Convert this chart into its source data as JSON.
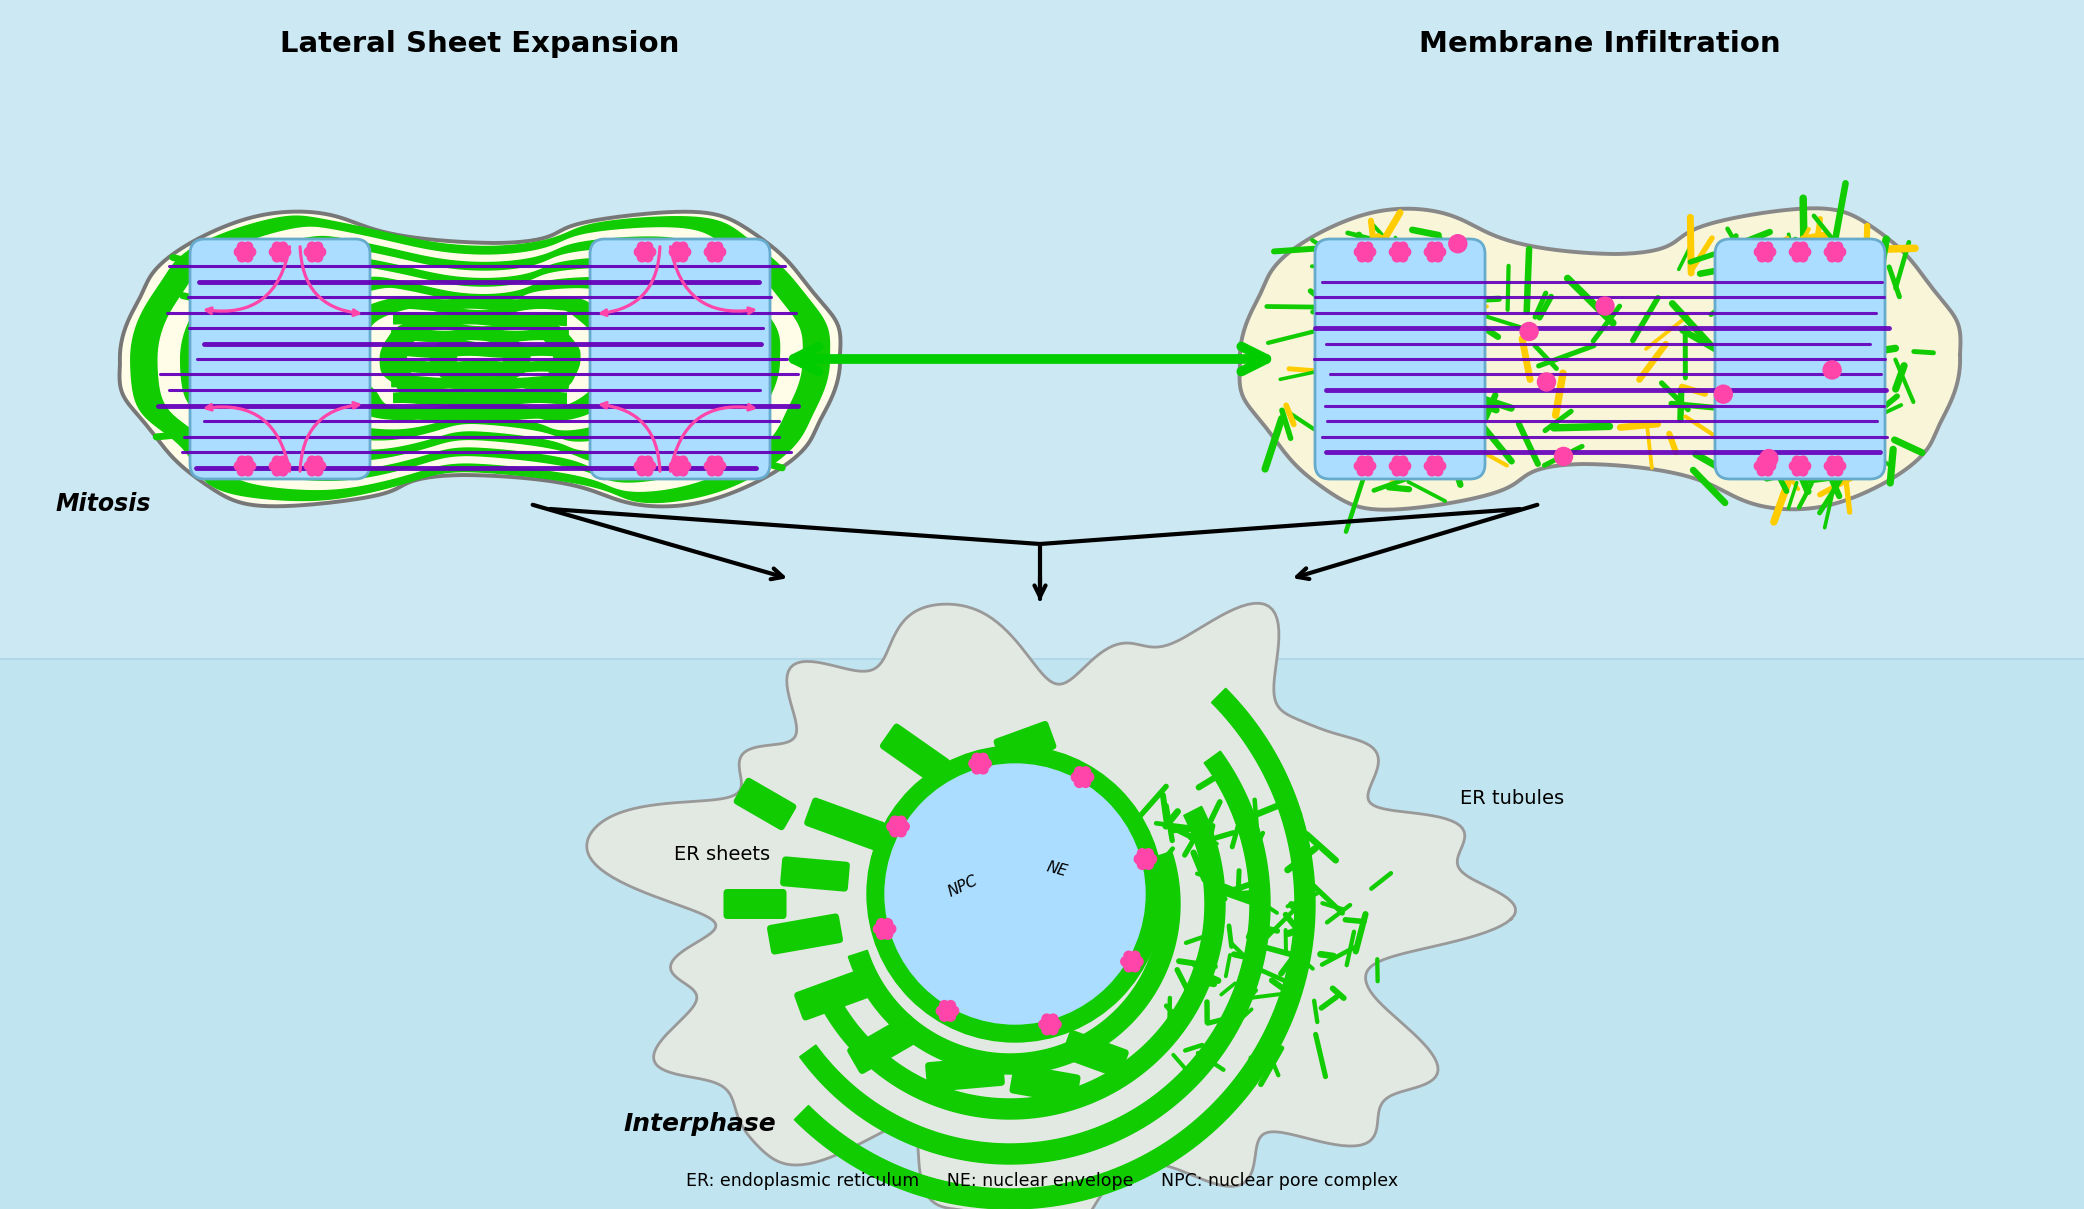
{
  "bg_color": "#cceeff",
  "bg_top_color": "#d5f0f8",
  "bg_bottom_color": "#c0e8f5",
  "title_left": "Lateral Sheet Expansion",
  "title_right": "Membrane Infiltration",
  "label_mitosis": "Mitosis",
  "label_interphase": "Interphase",
  "label_er_sheets": "ER sheets",
  "label_er_tubules": "ER tubules",
  "label_npc": "NPC",
  "label_ne": "NE",
  "legend_text": "ER: endoplasmic reticulum     NE: nuclear envelope     NPC: nuclear pore complex",
  "green_color": "#11cc00",
  "cream_color": "#fffce8",
  "light_blue_nuc": "#aaddff",
  "purple_color": "#6600bb",
  "pink_color": "#ff44aa",
  "yellow_color": "#ffcc00",
  "gray_outline": "#777777",
  "arrow_green": "#00cc00",
  "cell_bg_right": "#f8f5d8"
}
